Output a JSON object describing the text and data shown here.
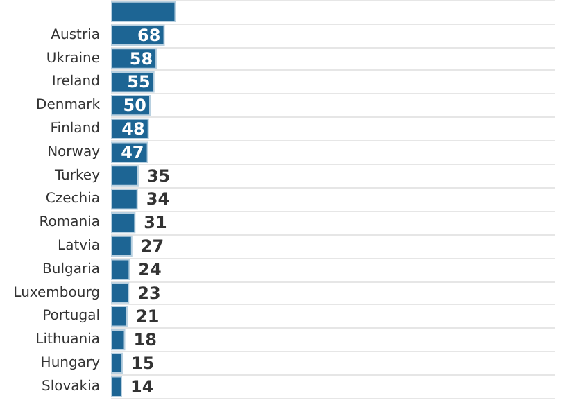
{
  "chart_data": {
    "type": "bar",
    "orientation": "horizontal",
    "grid": "y",
    "color": "#1d6594",
    "categories": [
      null,
      "Austria",
      "Ukraine",
      "Ireland",
      "Denmark",
      "Finland",
      "Norway",
      "Turkey",
      "Czechia",
      "Romania",
      "Latvia",
      "Bulgaria",
      "Luxembourg",
      "Portugal",
      "Lithuania",
      "Hungary",
      "Slovakia"
    ],
    "values": [
      82,
      68,
      58,
      55,
      50,
      48,
      47,
      35,
      34,
      31,
      27,
      24,
      23,
      21,
      18,
      15,
      14
    ],
    "value_labels": [
      null,
      "68",
      "58",
      "55",
      "50",
      "48",
      "47",
      "35",
      "34",
      "31",
      "27",
      "24",
      "23",
      "21",
      "18",
      "15",
      "14"
    ]
  }
}
